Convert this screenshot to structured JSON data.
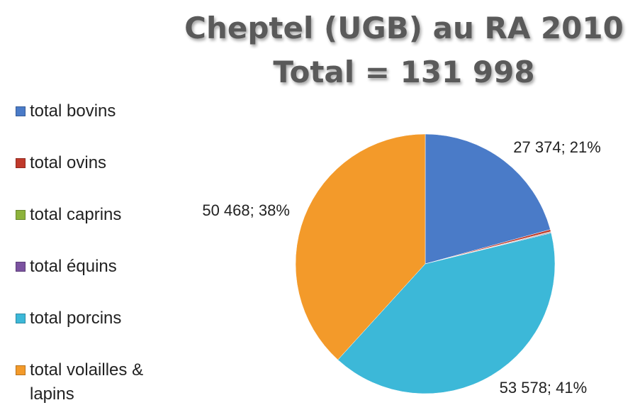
{
  "chart_data": {
    "type": "pie",
    "title": "Cheptel (UGB) au RA 2010",
    "subtitle": "Total = 131 998",
    "categories": [
      "total bovins",
      "total ovins",
      "total caprins",
      "total équins",
      "total porcins",
      "total volailles & lapins"
    ],
    "values": [
      27374,
      350,
      100,
      128,
      53578,
      50468
    ],
    "value_labels": [
      "27 374; 21%",
      null,
      null,
      null,
      "53 578; 41%",
      "50 468; 38%"
    ],
    "colors": [
      "#4a7bc8",
      "#c0392b",
      "#8db33c",
      "#7b52a0",
      "#3cb8d8",
      "#f39a2a"
    ],
    "legend": "left"
  }
}
